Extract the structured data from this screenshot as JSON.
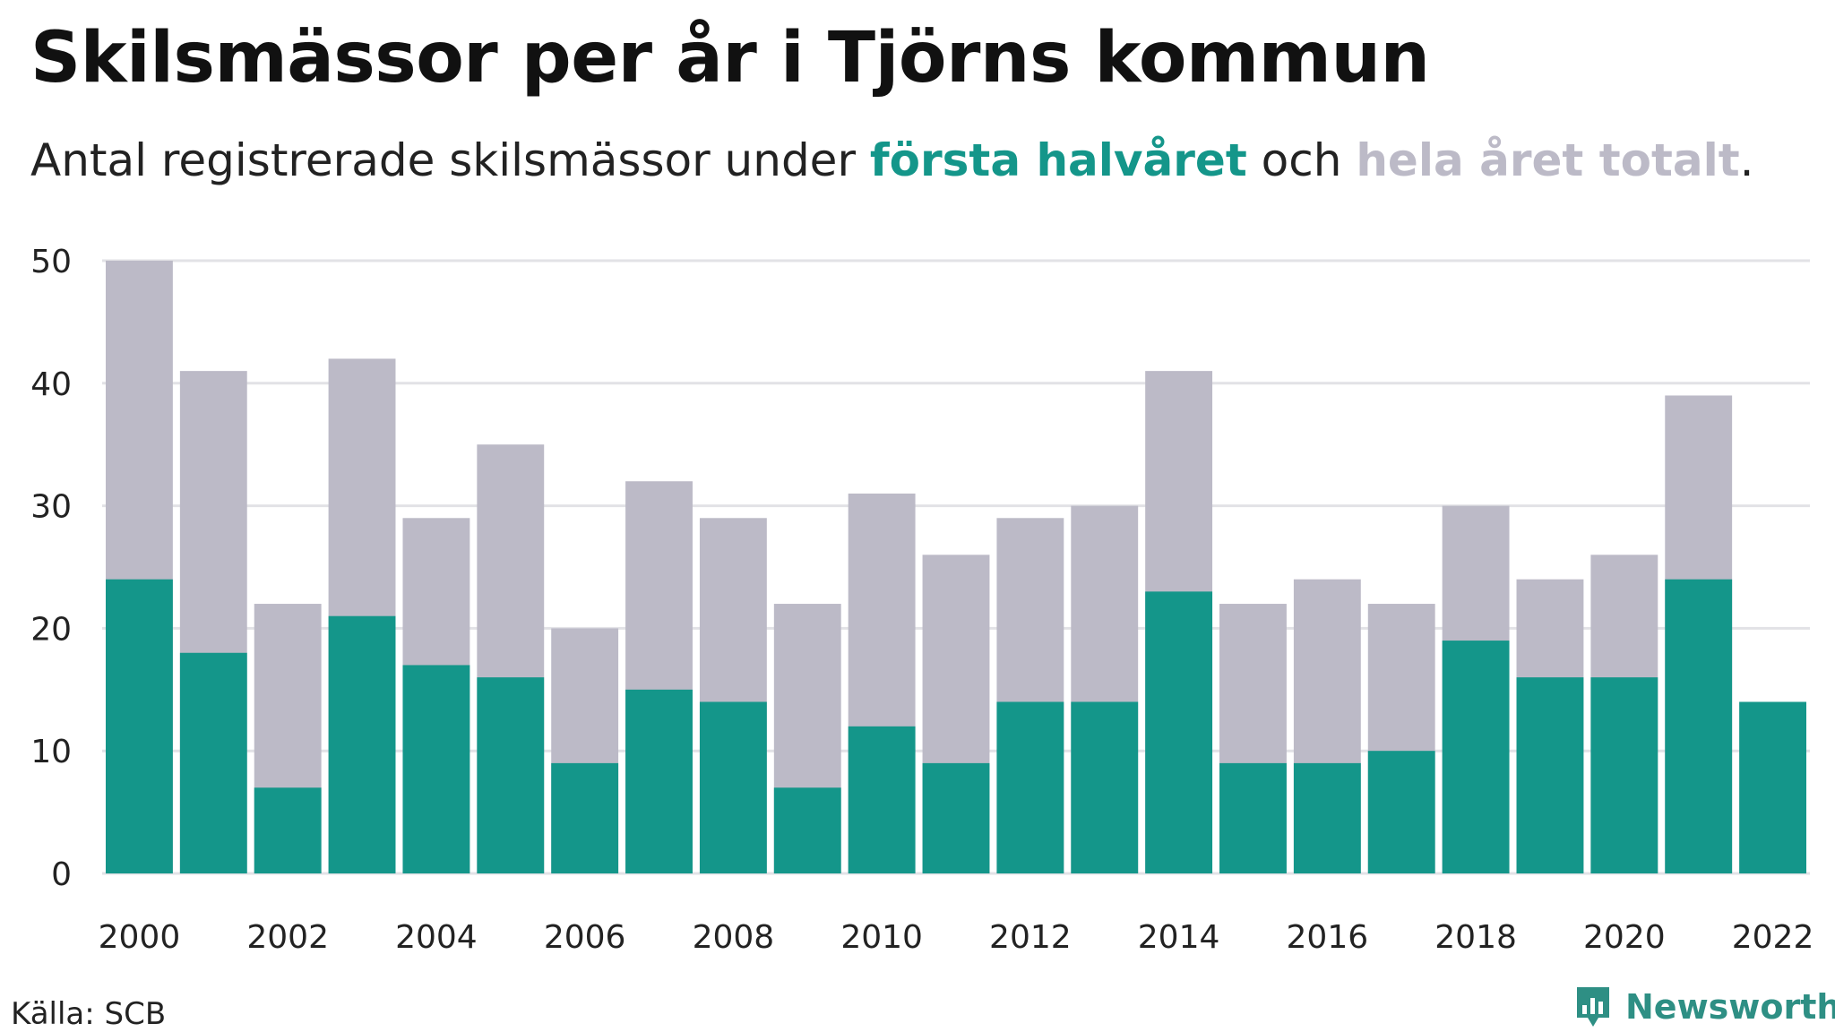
{
  "title": "Skilsmässor per år i Tjörns kommun",
  "subtitle": {
    "prefix": "Antal registrerade skilsmässor under ",
    "first_label": "första halvåret",
    "middle": " och ",
    "total_label": "hela året totalt",
    "suffix": "."
  },
  "colors": {
    "first_half": "#14968a",
    "total": "#bcbac7",
    "grid": "#e2e2e6",
    "axis_text": "#222222"
  },
  "source": "Källa: SCB",
  "brand": {
    "name": "Newsworthy",
    "icon": "newsworthy-logo-icon"
  },
  "chart_data": {
    "type": "bar",
    "stacking": "overlay",
    "categories": [
      "2000",
      "2001",
      "2002",
      "2003",
      "2004",
      "2005",
      "2006",
      "2007",
      "2008",
      "2009",
      "2010",
      "2011",
      "2012",
      "2013",
      "2014",
      "2015",
      "2016",
      "2017",
      "2018",
      "2019",
      "2020",
      "2021",
      "2022"
    ],
    "x_tick_labels": [
      "2000",
      "2002",
      "2004",
      "2006",
      "2008",
      "2010",
      "2012",
      "2014",
      "2016",
      "2018",
      "2020",
      "2022"
    ],
    "y_ticks": [
      "0",
      "10",
      "20",
      "30",
      "40",
      "50"
    ],
    "ylim": [
      0,
      50
    ],
    "grid": true,
    "series": [
      {
        "name": "hela året totalt",
        "color": "#bcbac7",
        "values": [
          50,
          41,
          22,
          42,
          29,
          35,
          20,
          32,
          29,
          22,
          31,
          26,
          29,
          30,
          41,
          22,
          24,
          22,
          30,
          24,
          26,
          39,
          null
        ]
      },
      {
        "name": "första halvåret",
        "color": "#14968a",
        "values": [
          24,
          18,
          7,
          21,
          17,
          16,
          9,
          15,
          14,
          7,
          12,
          9,
          14,
          14,
          23,
          9,
          9,
          10,
          19,
          16,
          16,
          24,
          14
        ]
      }
    ]
  }
}
